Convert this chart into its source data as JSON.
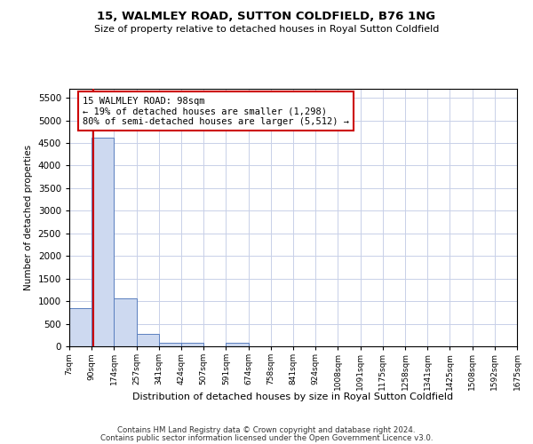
{
  "title": "15, WALMLEY ROAD, SUTTON COLDFIELD, B76 1NG",
  "subtitle": "Size of property relative to detached houses in Royal Sutton Coldfield",
  "xlabel": "Distribution of detached houses by size in Royal Sutton Coldfield",
  "ylabel": "Number of detached properties",
  "footnote1": "Contains HM Land Registry data © Crown copyright and database right 2024.",
  "footnote2": "Contains public sector information licensed under the Open Government Licence v3.0.",
  "annotation_line1": "15 WALMLEY ROAD: 98sqm",
  "annotation_line2": "← 19% of detached houses are smaller (1,298)",
  "annotation_line3": "80% of semi-detached houses are larger (5,512) →",
  "property_size": 98,
  "bar_edge_color": "#5a7fbf",
  "bar_fill_color": "#cdd9f0",
  "marker_color": "#cc0000",
  "annotation_box_color": "#cc0000",
  "grid_color": "#c8d0e8",
  "background_color": "#ffffff",
  "bins": [
    7,
    90,
    174,
    257,
    341,
    424,
    507,
    591,
    674,
    758,
    841,
    924,
    1008,
    1091,
    1175,
    1258,
    1341,
    1425,
    1508,
    1592,
    1675
  ],
  "bin_labels": [
    "7sqm",
    "90sqm",
    "174sqm",
    "257sqm",
    "341sqm",
    "424sqm",
    "507sqm",
    "591sqm",
    "674sqm",
    "758sqm",
    "841sqm",
    "924sqm",
    "1008sqm",
    "1091sqm",
    "1175sqm",
    "1258sqm",
    "1341sqm",
    "1425sqm",
    "1508sqm",
    "1592sqm",
    "1675sqm"
  ],
  "bar_heights": [
    850,
    4620,
    1055,
    275,
    82,
    78,
    5,
    72,
    8,
    3,
    2,
    1,
    1,
    0,
    0,
    0,
    0,
    0,
    0,
    0
  ],
  "ylim": [
    0,
    5700
  ],
  "yticks": [
    0,
    500,
    1000,
    1500,
    2000,
    2500,
    3000,
    3500,
    4000,
    4500,
    5000,
    5500
  ]
}
